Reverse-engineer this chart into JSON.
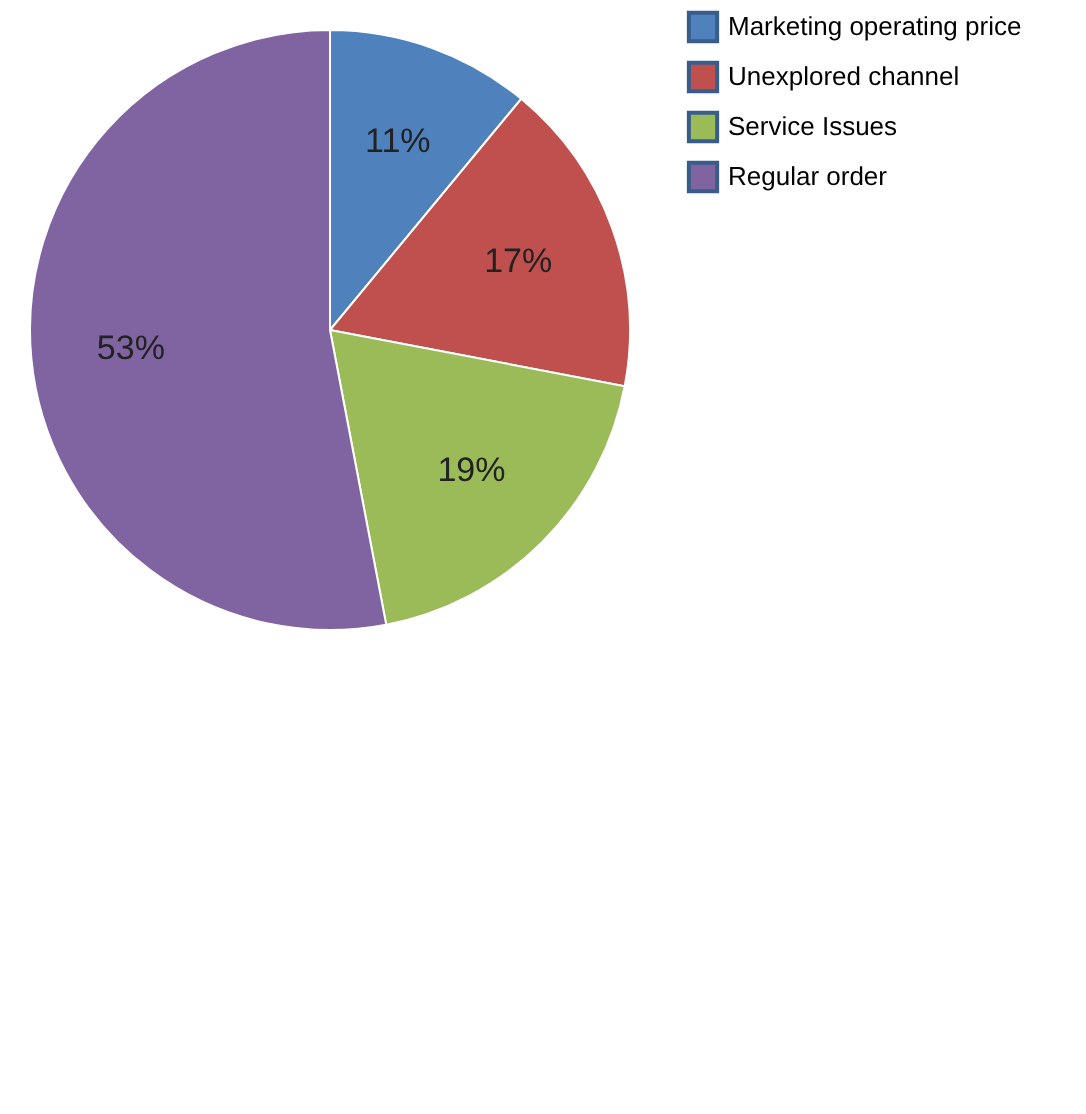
{
  "chart_data": {
    "type": "pie",
    "categories": [
      "Marketing operating price",
      "Unexplored channel",
      "Service Issues",
      "Regular order"
    ],
    "values": [
      11,
      17,
      19,
      53
    ],
    "colors": [
      "#4f81bd",
      "#c0504d",
      "#9bbb59",
      "#8064a2"
    ],
    "value_labels": [
      "11%",
      "17%",
      "19%",
      "53%"
    ],
    "legend": "right"
  }
}
